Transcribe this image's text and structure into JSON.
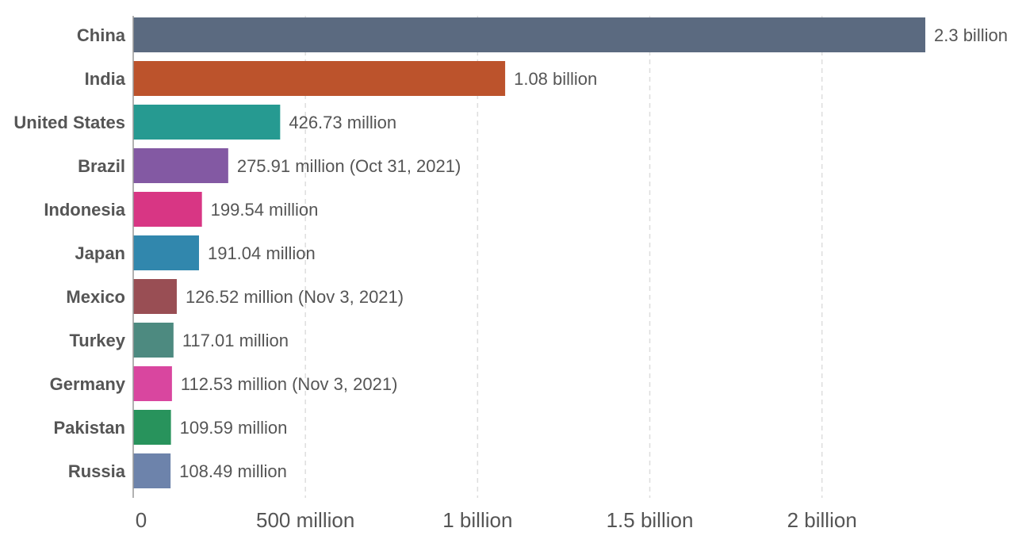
{
  "chart_data": {
    "type": "bar",
    "orientation": "horizontal",
    "categories": [
      "China",
      "India",
      "United States",
      "Brazil",
      "Indonesia",
      "Japan",
      "Mexico",
      "Turkey",
      "Germany",
      "Pakistan",
      "Russia"
    ],
    "values": [
      2300000000,
      1080000000,
      426730000,
      275910000,
      199540000,
      191040000,
      126520000,
      117010000,
      112530000,
      109590000,
      108490000
    ],
    "value_labels": [
      "2.3 billion",
      "1.08 billion",
      "426.73 million",
      "275.91 million (Oct 31, 2021)",
      "199.54 million",
      "191.04 million",
      "126.52 million (Nov 3, 2021)",
      "117.01 million",
      "112.53 million (Nov 3, 2021)",
      "109.59 million",
      "108.49 million"
    ],
    "colors": [
      "#5b6a80",
      "#bc532c",
      "#269a91",
      "#8359a3",
      "#d83684",
      "#3187ad",
      "#994e54",
      "#4d8a80",
      "#d9469f",
      "#28935c",
      "#6d83ab"
    ],
    "xticks": [
      0,
      500000000,
      1000000000,
      1500000000,
      2000000000
    ],
    "xtick_labels": [
      "0",
      "500 million",
      "1 billion",
      "1.5 billion",
      "2 billion"
    ],
    "xlim": [
      0,
      2300000000
    ],
    "grid": true,
    "title": "",
    "xlabel": "",
    "ylabel": ""
  }
}
